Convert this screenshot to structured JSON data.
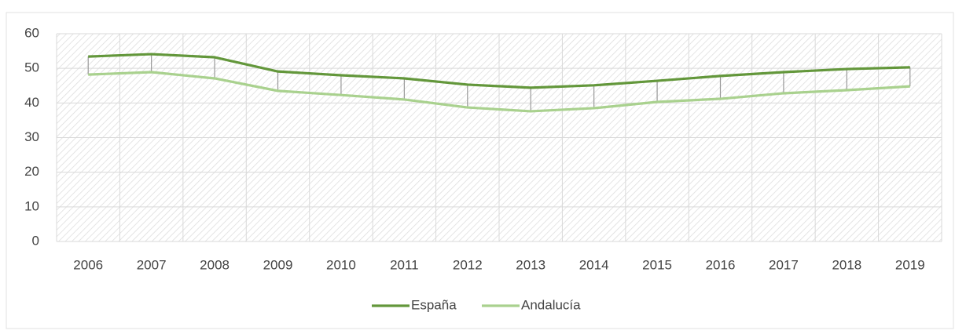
{
  "chart_data": {
    "type": "line",
    "categories": [
      "2006",
      "2007",
      "2008",
      "2009",
      "2010",
      "2011",
      "2012",
      "2013",
      "2014",
      "2015",
      "2016",
      "2017",
      "2018",
      "2019"
    ],
    "series": [
      {
        "name": "España",
        "color": "#63973b",
        "values": [
          53.4,
          54.1,
          53.2,
          49.1,
          48.0,
          47.1,
          45.3,
          44.4,
          45.1,
          46.4,
          47.8,
          48.9,
          49.8,
          50.3
        ]
      },
      {
        "name": "Andalucía",
        "color": "#a9d18e",
        "values": [
          48.2,
          48.9,
          47.1,
          43.5,
          42.3,
          41.0,
          38.7,
          37.6,
          38.5,
          40.3,
          41.2,
          42.8,
          43.7,
          44.8
        ]
      }
    ],
    "ylim": [
      0,
      60
    ],
    "yticks": [
      0,
      10,
      20,
      30,
      40,
      50,
      60
    ],
    "grid": true,
    "hilo_lines": true,
    "legend": "bottom"
  }
}
